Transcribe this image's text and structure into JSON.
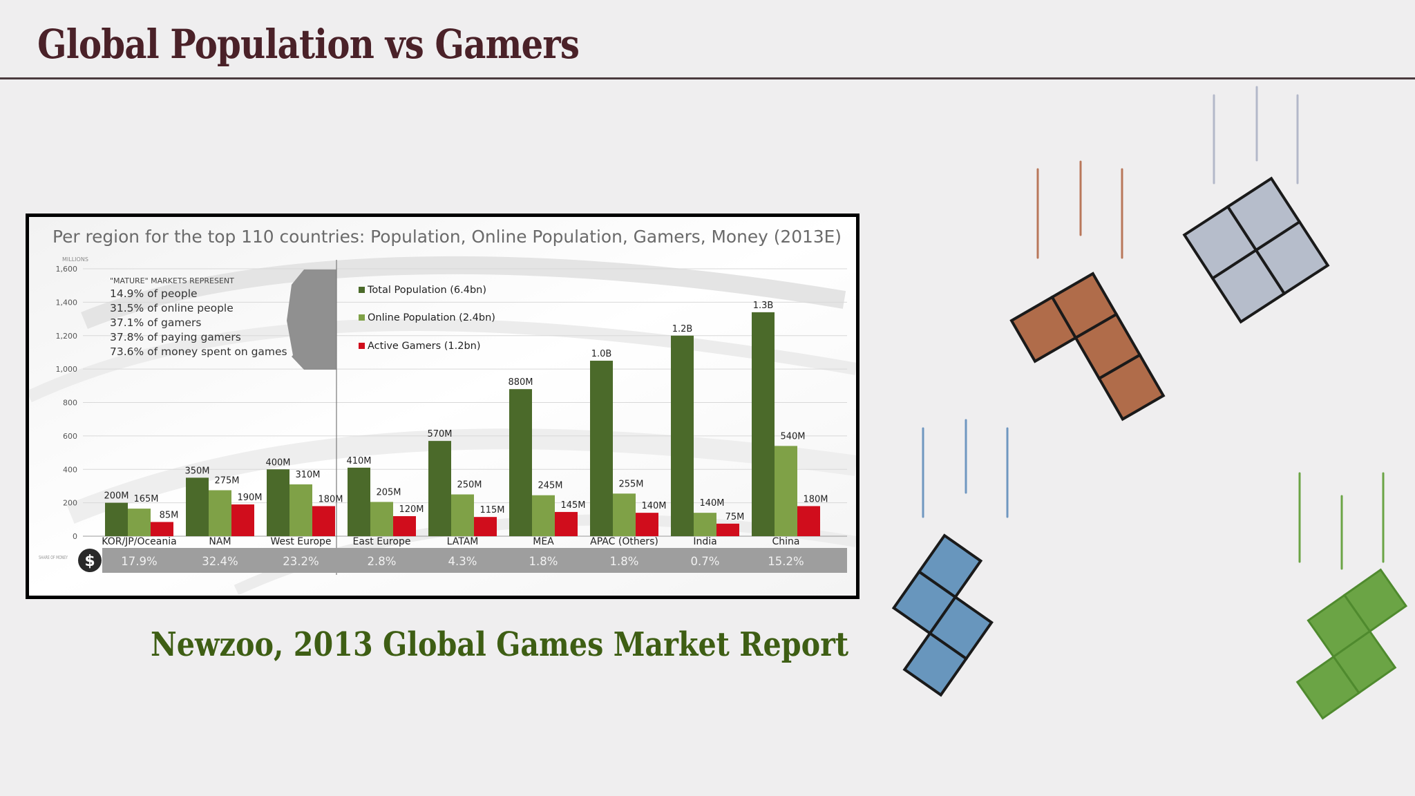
{
  "slide": {
    "title": "Global Population vs Gamers",
    "caption": "Newzoo, 2013 Global Games Market Report"
  },
  "chart_data": {
    "type": "bar",
    "title": "Per region for the top 110 countries: Population, Online Population, Gamers, Money (2013E)",
    "ylabel": "MILLIONS",
    "ylim": [
      0,
      1600
    ],
    "yticks": [
      "0",
      "200",
      "400",
      "600",
      "800",
      "1,000",
      "1,200",
      "1,400",
      "1,600"
    ],
    "grid": true,
    "legend_position": "top",
    "categories": [
      "KOR/JP/Oceania",
      "NAM",
      "West Europe",
      "East Europe",
      "LATAM",
      "MEA",
      "APAC (Others)",
      "India",
      "China"
    ],
    "series": [
      {
        "name": "Total Population (6.4bn)",
        "color": "#4b6a2a",
        "values": [
          200,
          350,
          400,
          410,
          570,
          880,
          1050,
          1200,
          1340
        ],
        "labels": [
          "200M",
          "350M",
          "400M",
          "410M",
          "570M",
          "880M",
          "1.0B",
          "1.2B",
          "1.3B"
        ]
      },
      {
        "name": "Online Population (2.4bn)",
        "color": "#7fa147",
        "values": [
          165,
          275,
          310,
          205,
          250,
          245,
          255,
          140,
          540
        ],
        "labels": [
          "165M",
          "275M",
          "310M",
          "205M",
          "250M",
          "245M",
          "255M",
          "140M",
          "540M"
        ]
      },
      {
        "name": "Active Gamers (1.2bn)",
        "color": "#d00d1c",
        "values": [
          85,
          190,
          180,
          120,
          115,
          145,
          140,
          75,
          180
        ],
        "labels": [
          "85M",
          "190M",
          "180M",
          "120M",
          "115M",
          "145M",
          "140M",
          "75M",
          "180M"
        ]
      }
    ],
    "mature_note": {
      "heading": "\"MATURE\" MARKETS REPRESENT",
      "lines": [
        "14.9% of people",
        "31.5% of online people",
        "37.1% of gamers",
        "37.8% of paying gamers",
        "73.6% of money spent on games"
      ]
    },
    "share_of_money": {
      "label": "SHARE OF MONEY",
      "icon": "dollar-icon",
      "values": [
        "17.9%",
        "32.4%",
        "23.2%",
        "2.8%",
        "4.3%",
        "1.8%",
        "1.8%",
        "0.7%",
        "15.2%"
      ]
    }
  },
  "decor": {
    "tetrominoes": [
      {
        "name": "o-piece",
        "color": "#b6bdcb"
      },
      {
        "name": "l-piece",
        "color": "#b06c4a"
      },
      {
        "name": "s-piece-blue",
        "color": "#6896bd"
      },
      {
        "name": "s-piece-green",
        "color": "#6ba445"
      }
    ]
  }
}
